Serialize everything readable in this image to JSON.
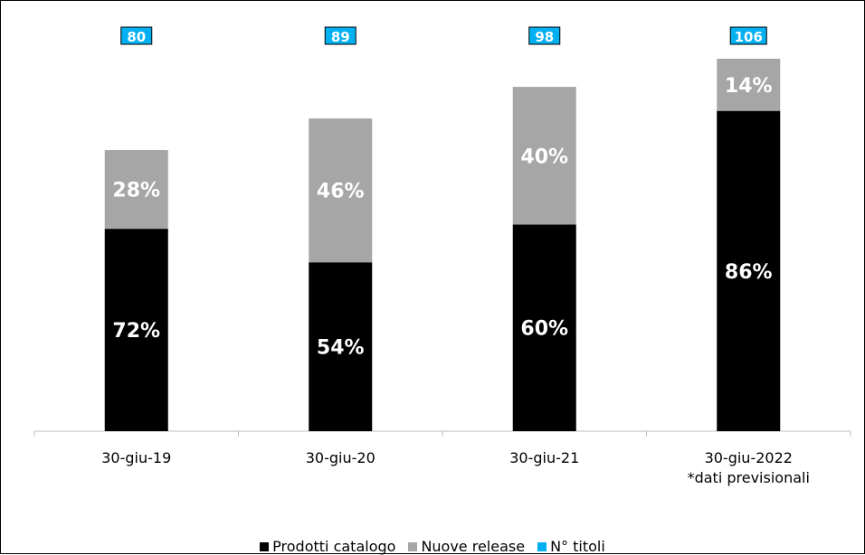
{
  "chart_data": {
    "type": "bar",
    "stacked": true,
    "categories": [
      "30-giu-19",
      "30-giu-20",
      "30-giu-21",
      "30-giu-2022"
    ],
    "category_notes": [
      "",
      "",
      "",
      "*dati previsionali"
    ],
    "series": [
      {
        "name": "Prodotti catalogo",
        "values": [
          72,
          54,
          60,
          86
        ],
        "labels": [
          "72%",
          "54%",
          "60%",
          "86%"
        ],
        "color": "#000000"
      },
      {
        "name": "Nuove release",
        "values": [
          28,
          46,
          40,
          14
        ],
        "labels": [
          "28%",
          "46%",
          "40%",
          "14%"
        ],
        "color": "#a6a6a6"
      }
    ],
    "titles_count": {
      "name": "N° titoli",
      "values": [
        80,
        89,
        98,
        106
      ],
      "labels": [
        "80",
        "89",
        "98",
        "106"
      ],
      "color": "#00b0f0"
    },
    "title": "",
    "xlabel": "",
    "ylabel": "",
    "grid": false,
    "legend": "bottom"
  }
}
